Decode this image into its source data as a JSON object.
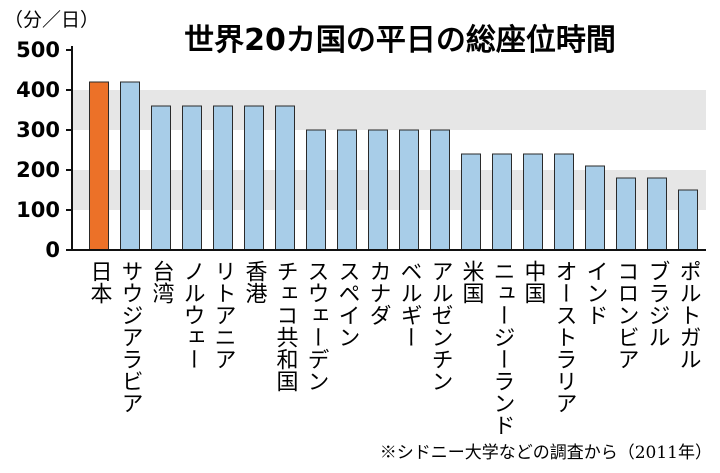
{
  "chart_data": {
    "type": "bar",
    "title": "世界20カ国の平日の総座位時間",
    "ylabel": "（分／日）",
    "ylim": [
      0,
      500
    ],
    "yticks": [
      0,
      100,
      200,
      300,
      400,
      500
    ],
    "grid": "alternating bands",
    "categories": [
      "日本",
      "サウジアラビア",
      "台湾",
      "ノルウェー",
      "リトアニア",
      "香港",
      "チェコ共和国",
      "スウェーデン",
      "スペイン",
      "カナダ",
      "ベルギー",
      "アルゼンチン",
      "米国",
      "ニュージーランド",
      "中国",
      "オーストラリア",
      "インド",
      "コロンビア",
      "ブラジル",
      "ポルトガル"
    ],
    "values": [
      420,
      420,
      360,
      360,
      360,
      360,
      360,
      300,
      300,
      300,
      300,
      300,
      240,
      240,
      240,
      240,
      210,
      180,
      180,
      150
    ],
    "highlight_index": 0,
    "colors": {
      "bar": "#a8cde8",
      "highlight": "#ec7128",
      "bar_stroke": "#2a2a2a",
      "band": "#e6e6e6",
      "axis": "#111111"
    },
    "note": "※シドニー大学などの調査から（2011年）"
  }
}
